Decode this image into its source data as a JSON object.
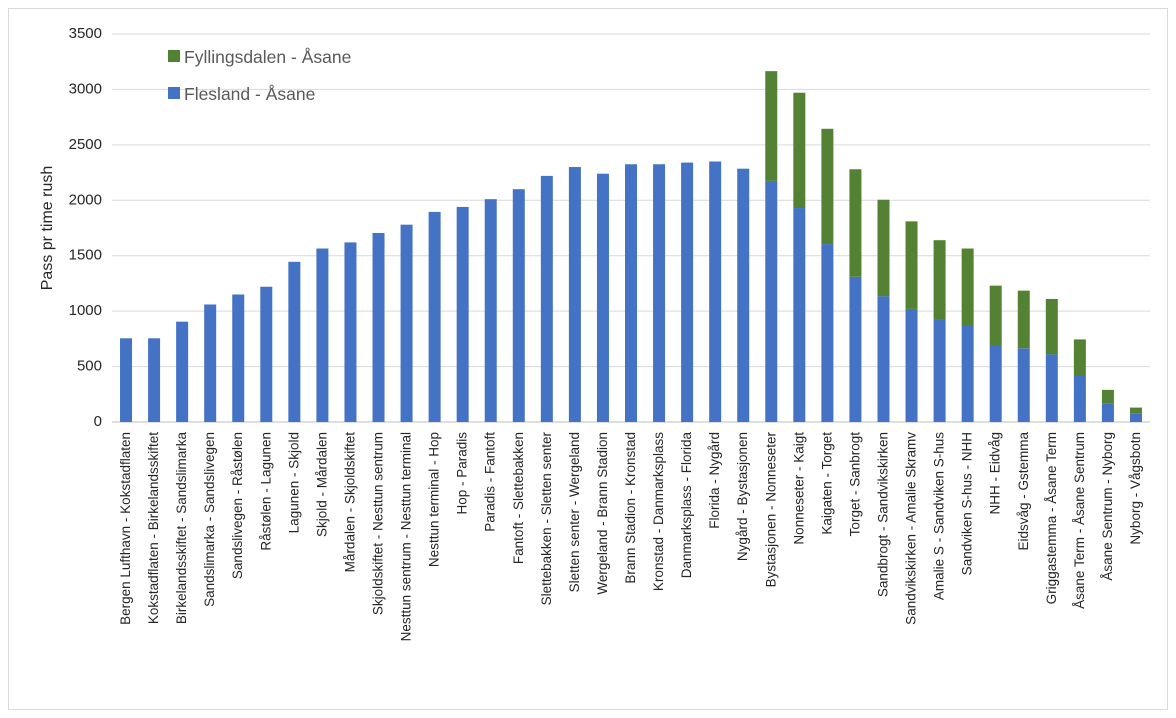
{
  "colors": {
    "flesland": "#4472c4",
    "fyllingsdalen": "#548235",
    "gridline": "#d9d9d9",
    "axis": "#bfbfbf"
  },
  "chart_data": {
    "type": "bar",
    "stacked": true,
    "title": "",
    "xlabel": "",
    "ylabel": "Pass pr time rush",
    "ylim": [
      0,
      3500
    ],
    "yticks": [
      0,
      500,
      1000,
      1500,
      2000,
      2500,
      3000,
      3500
    ],
    "grid": true,
    "legend_position": "top-left",
    "categories": [
      "Bergen Lufthavn - Kokstadflaten",
      "Kokstadflaten - Birkelandsskiftet",
      "Birkelandsskiftet - Sandslimarka",
      "Sandslimarka - Sandslivegen",
      "Sandslivegen - Råstølen",
      "Råstølen - Lagunen",
      "Lagunen - Skjold",
      "Skjold - Mårdalen",
      "Mårdalen - Skjoldskiftet",
      "Skjoldskiftet - Nesttun sentrum",
      "Nesttun sentrum - Nesttun terminal",
      "Nesttun terminal - Hop",
      "Hop - Paradis",
      "Paradis - Fantoft",
      "Fantoft - Slettebakken",
      "Slettebakken - Sletten senter",
      "Sletten senter - Wergeland",
      "Wergeland - Brann Stadion",
      "Brann Stadion - Kronstad",
      "Kronstad - Danmarksplass",
      "Danmarksplass - Florida",
      "Florida - Nygård",
      "Nygård - Bystasjonen",
      "Bystasjonen - Nonneseter",
      "Nonneseter - Kaigt",
      "Kaigaten - Torget",
      "Torget - Sanbrogt",
      "Sandbrogt - Sandvikskirken",
      "Sandvikskirken - Amalie Skramv",
      "Amalie S - Sandviken S-hus",
      "Sandviken S-hus - NHH",
      "NHH - Eidvåg",
      "Eidsvåg - Gstemma",
      "Griggastemma - Åsane Term",
      "Åsane Term - Åsane Sentrum",
      "Åsane Sentrum - Nyborg",
      "Nyborg - Vågsbotn"
    ],
    "series": [
      {
        "name": "Flesland - Åsane",
        "color": "#4472c4",
        "values": [
          755,
          755,
          905,
          1060,
          1150,
          1220,
          1445,
          1565,
          1620,
          1705,
          1780,
          1895,
          1940,
          2010,
          2100,
          2220,
          2300,
          2240,
          2325,
          2325,
          2340,
          2350,
          2285,
          2175,
          1930,
          1605,
          1310,
          1135,
          1020,
          925,
          875,
          690,
          665,
          610,
          415,
          165,
          75
        ]
      },
      {
        "name": "Fyllingsdalen - Åsane",
        "color": "#548235",
        "values": [
          0,
          0,
          0,
          0,
          0,
          0,
          0,
          0,
          0,
          0,
          0,
          0,
          0,
          0,
          0,
          0,
          0,
          0,
          0,
          0,
          0,
          0,
          0,
          990,
          1040,
          1040,
          970,
          870,
          790,
          715,
          690,
          540,
          520,
          500,
          330,
          125,
          55
        ]
      }
    ]
  }
}
